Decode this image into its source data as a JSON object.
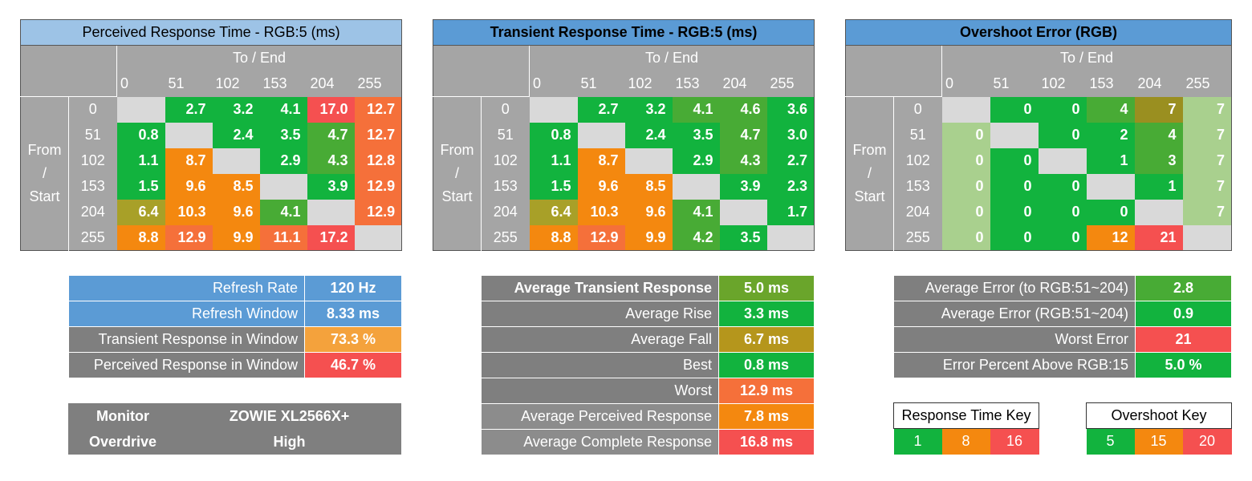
{
  "colors": {
    "header_gray": "#a5a5a5",
    "empty": "#d9d9d9",
    "title_light_blue": "#9dc3e6",
    "title_blue": "#5b9bd5",
    "green": "#12b33e",
    "green_mid": "#48ab35",
    "light_green": "#a9d08e",
    "olive": "#a8a028",
    "olive_dark": "#9a8f20",
    "orange": "#f4880f",
    "orange_red": "#f5703a",
    "red": "#f55050",
    "gray_dark": "#7f7f7f",
    "gray_mid": "#8c8c8c"
  },
  "levels": [
    "0",
    "51",
    "102",
    "153",
    "204",
    "255"
  ],
  "to_end_label": "To / End",
  "from_start": [
    "From",
    "/",
    "Start"
  ],
  "perceived": {
    "title": "Perceived Response Time - RGB:5 (ms)",
    "rows": [
      [
        "",
        "2.7",
        "3.2",
        "4.1",
        "17.0",
        "12.7"
      ],
      [
        "0.8",
        "",
        "2.4",
        "3.5",
        "4.7",
        "12.7"
      ],
      [
        "1.1",
        "8.7",
        "",
        "2.9",
        "4.3",
        "12.8"
      ],
      [
        "1.5",
        "9.6",
        "8.5",
        "",
        "3.9",
        "12.9"
      ],
      [
        "6.4",
        "10.3",
        "9.6",
        "4.1",
        "",
        "12.9"
      ],
      [
        "8.8",
        "12.9",
        "9.9",
        "11.1",
        "17.2",
        ""
      ]
    ],
    "row_colors": [
      [
        "#d9d9d9",
        "#12b33e",
        "#12b33e",
        "#12b33e",
        "#f55050",
        "#f5703a"
      ],
      [
        "#12b33e",
        "#d9d9d9",
        "#12b33e",
        "#12b33e",
        "#48ab35",
        "#f5703a"
      ],
      [
        "#12b33e",
        "#f4880f",
        "#d9d9d9",
        "#12b33e",
        "#48ab35",
        "#f5703a"
      ],
      [
        "#12b33e",
        "#f4880f",
        "#f4880f",
        "#d9d9d9",
        "#12b33e",
        "#f5703a"
      ],
      [
        "#a8a028",
        "#f4880f",
        "#f4880f",
        "#48ab35",
        "#d9d9d9",
        "#f5703a"
      ],
      [
        "#f4880f",
        "#f5703a",
        "#f4880f",
        "#f5703a",
        "#f55050",
        "#d9d9d9"
      ]
    ]
  },
  "transient": {
    "title": "Transient Response Time - RGB:5 (ms)",
    "rows": [
      [
        "",
        "2.7",
        "3.2",
        "4.1",
        "4.6",
        "3.6"
      ],
      [
        "0.8",
        "",
        "2.4",
        "3.5",
        "4.7",
        "3.0"
      ],
      [
        "1.1",
        "8.7",
        "",
        "2.9",
        "4.3",
        "2.7"
      ],
      [
        "1.5",
        "9.6",
        "8.5",
        "",
        "3.9",
        "2.3"
      ],
      [
        "6.4",
        "10.3",
        "9.6",
        "4.1",
        "",
        "1.7"
      ],
      [
        "8.8",
        "12.9",
        "9.9",
        "4.2",
        "3.5",
        ""
      ]
    ],
    "row_colors": [
      [
        "#d9d9d9",
        "#12b33e",
        "#12b33e",
        "#48ab35",
        "#48ab35",
        "#12b33e"
      ],
      [
        "#12b33e",
        "#d9d9d9",
        "#12b33e",
        "#12b33e",
        "#48ab35",
        "#12b33e"
      ],
      [
        "#12b33e",
        "#f4880f",
        "#d9d9d9",
        "#12b33e",
        "#48ab35",
        "#12b33e"
      ],
      [
        "#12b33e",
        "#f4880f",
        "#f4880f",
        "#d9d9d9",
        "#12b33e",
        "#12b33e"
      ],
      [
        "#a8a028",
        "#f4880f",
        "#f4880f",
        "#48ab35",
        "#d9d9d9",
        "#12b33e"
      ],
      [
        "#f4880f",
        "#f5703a",
        "#f4880f",
        "#48ab35",
        "#12b33e",
        "#d9d9d9"
      ]
    ]
  },
  "overshoot": {
    "title": "Overshoot Error (RGB)",
    "rows": [
      [
        "",
        "0",
        "0",
        "4",
        "7",
        "7"
      ],
      [
        "0",
        "",
        "0",
        "2",
        "4",
        "7"
      ],
      [
        "0",
        "0",
        "",
        "1",
        "3",
        "7"
      ],
      [
        "0",
        "0",
        "0",
        "",
        "1",
        "7"
      ],
      [
        "0",
        "0",
        "0",
        "0",
        "",
        "7"
      ],
      [
        "0",
        "0",
        "0",
        "12",
        "21",
        ""
      ]
    ],
    "row_colors": [
      [
        "#d9d9d9",
        "#12b33e",
        "#12b33e",
        "#48ab35",
        "#9a8f20",
        "#a9d08e"
      ],
      [
        "#a9d08e",
        "#d9d9d9",
        "#12b33e",
        "#12b33e",
        "#48ab35",
        "#a9d08e"
      ],
      [
        "#a9d08e",
        "#12b33e",
        "#d9d9d9",
        "#12b33e",
        "#48ab35",
        "#a9d08e"
      ],
      [
        "#a9d08e",
        "#12b33e",
        "#12b33e",
        "#d9d9d9",
        "#12b33e",
        "#a9d08e"
      ],
      [
        "#a9d08e",
        "#12b33e",
        "#12b33e",
        "#12b33e",
        "#d9d9d9",
        "#a9d08e"
      ],
      [
        "#a9d08e",
        "#12b33e",
        "#12b33e",
        "#f4880f",
        "#f55050",
        "#d9d9d9"
      ]
    ]
  },
  "window_stats": [
    {
      "label": "Refresh Rate",
      "value": "120 Hz",
      "label_bg": "#5b9bd5",
      "value_bg": "#5b9bd5"
    },
    {
      "label": "Refresh Window",
      "value": "8.33 ms",
      "label_bg": "#5b9bd5",
      "value_bg": "#5b9bd5"
    },
    {
      "label": "Transient Response in Window",
      "value": "73.3 %",
      "label_bg": "#7f7f7f",
      "value_bg": "#f4a23c"
    },
    {
      "label": "Perceived Response in Window",
      "value": "46.7 %",
      "label_bg": "#7f7f7f",
      "value_bg": "#f55050"
    }
  ],
  "monitor": {
    "monitor_label": "Monitor",
    "monitor_value": "ZOWIE XL2566X+",
    "overdrive_label": "Overdrive",
    "overdrive_value": "High"
  },
  "transient_stats": [
    {
      "label": "Average Transient Response",
      "value": "5.0 ms",
      "label_bg": "#7f7f7f",
      "value_bg": "#6aa52b",
      "bold": true
    },
    {
      "label": "Average Rise",
      "value": "3.3 ms",
      "label_bg": "#7f7f7f",
      "value_bg": "#12b33e"
    },
    {
      "label": "Average Fall",
      "value": "6.7 ms",
      "label_bg": "#7f7f7f",
      "value_bg": "#b5961c"
    },
    {
      "label": "Best",
      "value": "0.8 ms",
      "label_bg": "#7f7f7f",
      "value_bg": "#12b33e"
    },
    {
      "label": "Worst",
      "value": "12.9 ms",
      "label_bg": "#7f7f7f",
      "value_bg": "#f5703a"
    },
    {
      "label": "Average Perceived Response",
      "value": "7.8 ms",
      "label_bg": "#8c8c8c",
      "value_bg": "#f4880f"
    },
    {
      "label": "Average Complete Response",
      "value": "16.8 ms",
      "label_bg": "#8c8c8c",
      "value_bg": "#f55050"
    }
  ],
  "error_stats": [
    {
      "label": "Average Error (to RGB:51~204)",
      "value": "2.8",
      "label_bg": "#7f7f7f",
      "value_bg": "#48ab35"
    },
    {
      "label": "Average Error (RGB:51~204)",
      "value": "0.9",
      "label_bg": "#7f7f7f",
      "value_bg": "#12b33e"
    },
    {
      "label": "Worst Error",
      "value": "21",
      "label_bg": "#7f7f7f",
      "value_bg": "#f55050"
    },
    {
      "label": "Error Percent Above RGB:15",
      "value": "5.0 %",
      "label_bg": "#7f7f7f",
      "value_bg": "#12b33e"
    }
  ],
  "response_key": {
    "title": "Response Time Key",
    "items": [
      {
        "value": "1",
        "color": "#12b33e"
      },
      {
        "value": "8",
        "color": "#f4880f"
      },
      {
        "value": "16",
        "color": "#f55050"
      }
    ]
  },
  "overshoot_key": {
    "title": "Overshoot Key",
    "items": [
      {
        "value": "5",
        "color": "#12b33e"
      },
      {
        "value": "15",
        "color": "#f4880f"
      },
      {
        "value": "20",
        "color": "#f55050"
      }
    ]
  }
}
